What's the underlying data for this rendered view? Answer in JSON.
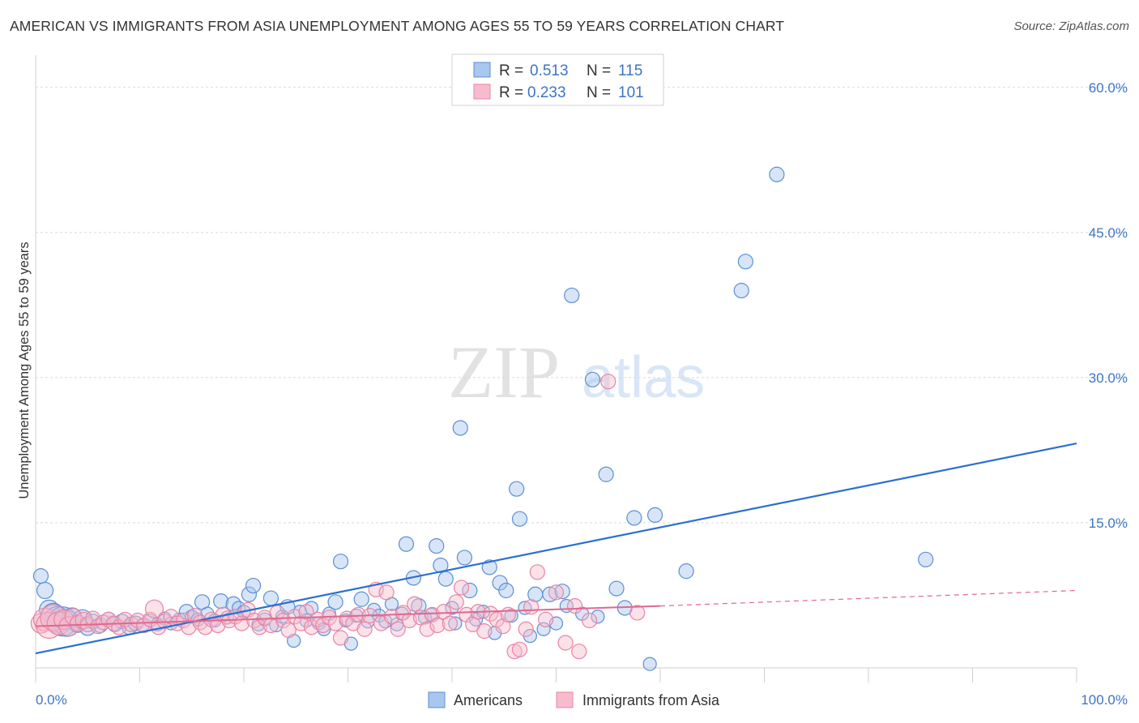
{
  "title": "AMERICAN VS IMMIGRANTS FROM ASIA UNEMPLOYMENT AMONG AGES 55 TO 59 YEARS CORRELATION CHART",
  "source": "Source: ZipAtlas.com",
  "watermark": {
    "zip": "ZIP",
    "atlas": "atlas"
  },
  "colors": {
    "americans": "#5b8fd6",
    "americans_fill": "#a9c6ee",
    "americans_line": "#2b6fd0",
    "asia": "#e884a4",
    "asia_fill": "#f6bccd",
    "asia_line": "#e2678f",
    "tick": "#3d74c4",
    "grid": "#d8d8d8"
  },
  "legend": {
    "rows": [
      {
        "r_label": "R =",
        "r_value": "0.513",
        "n_label": "N =",
        "n_value": "115"
      },
      {
        "r_label": "R =",
        "r_value": "0.233",
        "n_label": "N =",
        "n_value": "101"
      }
    ]
  },
  "bottom_legend": [
    "Americans",
    "Immigrants from Asia"
  ],
  "chart_data": {
    "type": "scatter",
    "title": "AMERICAN VS IMMIGRANTS FROM ASIA UNEMPLOYMENT AMONG AGES 55 TO 59 YEARS CORRELATION CHART",
    "xlabel": "",
    "ylabel": "Unemployment Among Ages 55 to 59 years",
    "xlim": [
      0,
      100
    ],
    "ylim": [
      0,
      63
    ],
    "x_ticks": [
      "0.0%",
      "100.0%"
    ],
    "y_ticks": [
      {
        "value": 15,
        "label": "15.0%"
      },
      {
        "value": 30,
        "label": "30.0%"
      },
      {
        "value": 45,
        "label": "45.0%"
      },
      {
        "value": 60,
        "label": "60.0%"
      }
    ],
    "grid": true,
    "legend_position": "top-center",
    "series": [
      {
        "name": "Americans",
        "r": 0.513,
        "n": 115,
        "trend": {
          "x": [
            0,
            100
          ],
          "y": [
            1.5,
            23.2
          ],
          "dashed_from": null
        },
        "points": [
          [
            0.5,
            9.5,
            9
          ],
          [
            0.9,
            8,
            10
          ],
          [
            1.3,
            6,
            12
          ],
          [
            1.7,
            5.5,
            14
          ],
          [
            2.1,
            5,
            16
          ],
          [
            2.6,
            4.8,
            18
          ],
          [
            3.0,
            4.6,
            16
          ],
          [
            3.5,
            5.2,
            12
          ],
          [
            4.0,
            4.5,
            10
          ],
          [
            4.5,
            5,
            12
          ],
          [
            5.0,
            4.2,
            10
          ],
          [
            5.5,
            4.8,
            9
          ],
          [
            6.2,
            4.4,
            9
          ],
          [
            7.0,
            5,
            9
          ],
          [
            7.6,
            4.5,
            9
          ],
          [
            8.3,
            4.8,
            9
          ],
          [
            9.0,
            4.2,
            9
          ],
          [
            9.6,
            4.6,
            9
          ],
          [
            10.3,
            4.4,
            8
          ],
          [
            11.0,
            4.9,
            8
          ],
          [
            11.7,
            4.5,
            8
          ],
          [
            12.4,
            5.1,
            8
          ],
          [
            13.0,
            4.6,
            8
          ],
          [
            13.8,
            5,
            8
          ],
          [
            14.5,
            5.8,
            9
          ],
          [
            15.0,
            5.3,
            8
          ],
          [
            15.6,
            5.0,
            8
          ],
          [
            16.0,
            6.8,
            9
          ],
          [
            16.5,
            5.6,
            8
          ],
          [
            17.2,
            4.9,
            8
          ],
          [
            17.8,
            6.9,
            9
          ],
          [
            18.4,
            5.2,
            8
          ],
          [
            19.0,
            6.6,
            9
          ],
          [
            19.5,
            6.2,
            8
          ],
          [
            20.0,
            5.8,
            8
          ],
          [
            20.5,
            7.6,
            9
          ],
          [
            20.9,
            8.5,
            9
          ],
          [
            21.4,
            4.5,
            8
          ],
          [
            22.0,
            5.0,
            8
          ],
          [
            22.6,
            7.2,
            9
          ],
          [
            23.1,
            4.4,
            8
          ],
          [
            23.7,
            5.3,
            8
          ],
          [
            24.2,
            6.3,
            9
          ],
          [
            24.8,
            2.8,
            8
          ],
          [
            25.4,
            5.8,
            8
          ],
          [
            26.0,
            4.9,
            8
          ],
          [
            26.5,
            6.2,
            8
          ],
          [
            27.2,
            4.6,
            8
          ],
          [
            27.7,
            4.0,
            8
          ],
          [
            28.2,
            5.6,
            8
          ],
          [
            28.8,
            6.8,
            9
          ],
          [
            29.3,
            11.0,
            9
          ],
          [
            29.8,
            4.9,
            8
          ],
          [
            30.3,
            2.5,
            8
          ],
          [
            30.8,
            5.4,
            8
          ],
          [
            31.3,
            7.1,
            9
          ],
          [
            31.9,
            4.8,
            8
          ],
          [
            32.5,
            6.0,
            8
          ],
          [
            33.0,
            5.4,
            8
          ],
          [
            33.6,
            4.8,
            8
          ],
          [
            34.2,
            6.6,
            8
          ],
          [
            34.7,
            4.5,
            8
          ],
          [
            35.2,
            5.6,
            8
          ],
          [
            35.6,
            12.8,
            9
          ],
          [
            36.3,
            9.3,
            9
          ],
          [
            36.8,
            6.4,
            9
          ],
          [
            37.4,
            5.2,
            8
          ],
          [
            38.0,
            5.5,
            8
          ],
          [
            38.5,
            12.6,
            9
          ],
          [
            38.9,
            10.6,
            9
          ],
          [
            39.4,
            9.2,
            9
          ],
          [
            40.0,
            6.2,
            8
          ],
          [
            40.3,
            4.6,
            8
          ],
          [
            40.8,
            24.8,
            9
          ],
          [
            41.2,
            11.4,
            9
          ],
          [
            41.7,
            8.0,
            9
          ],
          [
            42.3,
            5.0,
            8
          ],
          [
            43.0,
            5.8,
            8
          ],
          [
            43.6,
            10.4,
            9
          ],
          [
            44.1,
            3.6,
            8
          ],
          [
            44.6,
            8.8,
            9
          ],
          [
            45.2,
            8.0,
            9
          ],
          [
            45.7,
            5.4,
            8
          ],
          [
            46.2,
            18.5,
            9
          ],
          [
            46.5,
            15.4,
            9
          ],
          [
            47.0,
            6.2,
            8
          ],
          [
            47.5,
            3.3,
            8
          ],
          [
            48.0,
            7.6,
            9
          ],
          [
            48.8,
            4.0,
            8
          ],
          [
            49.4,
            7.6,
            9
          ],
          [
            50.0,
            4.6,
            8
          ],
          [
            50.6,
            7.9,
            9
          ],
          [
            51.0,
            6.4,
            8
          ],
          [
            51.5,
            38.5,
            9
          ],
          [
            52.5,
            5.6,
            8
          ],
          [
            53.5,
            29.8,
            9
          ],
          [
            54.0,
            5.3,
            8
          ],
          [
            54.8,
            20.0,
            9
          ],
          [
            55.8,
            8.2,
            9
          ],
          [
            56.6,
            6.2,
            9
          ],
          [
            57.5,
            15.5,
            9
          ],
          [
            59.0,
            0.4,
            8
          ],
          [
            59.5,
            15.8,
            9
          ],
          [
            62.5,
            10.0,
            9
          ],
          [
            67.8,
            39.0,
            9
          ],
          [
            68.2,
            42.0,
            9
          ],
          [
            71.2,
            51.0,
            9
          ],
          [
            85.5,
            11.2,
            9
          ]
        ]
      },
      {
        "name": "Immigrants from Asia",
        "r": 0.233,
        "n": 101,
        "trend": {
          "x": [
            0,
            60,
            100
          ],
          "y": [
            4.3,
            6.4,
            8.0
          ],
          "dashed_from": 60
        },
        "points": [
          [
            0.5,
            4.6,
            12
          ],
          [
            0.9,
            5.0,
            14
          ],
          [
            1.3,
            4.4,
            16
          ],
          [
            1.7,
            5.2,
            16
          ],
          [
            2.2,
            4.6,
            14
          ],
          [
            2.7,
            5.0,
            12
          ],
          [
            3.2,
            4.3,
            12
          ],
          [
            3.6,
            5.3,
            10
          ],
          [
            4.1,
            4.6,
            10
          ],
          [
            4.6,
            4.9,
            10
          ],
          [
            5.0,
            4.5,
            9
          ],
          [
            5.5,
            5.1,
            9
          ],
          [
            6.0,
            4.3,
            9
          ],
          [
            6.5,
            4.7,
            9
          ],
          [
            7.0,
            5.0,
            9
          ],
          [
            7.5,
            4.6,
            9
          ],
          [
            8.0,
            4.2,
            9
          ],
          [
            8.6,
            5.0,
            9
          ],
          [
            9.2,
            4.5,
            9
          ],
          [
            9.8,
            4.9,
            9
          ],
          [
            10.4,
            4.4,
            9
          ],
          [
            11.0,
            5.0,
            9
          ],
          [
            11.4,
            6.1,
            11
          ],
          [
            11.8,
            4.2,
            9
          ],
          [
            12.4,
            4.8,
            9
          ],
          [
            13.0,
            5.3,
            9
          ],
          [
            13.6,
            4.6,
            9
          ],
          [
            14.2,
            4.9,
            9
          ],
          [
            14.7,
            4.2,
            9
          ],
          [
            15.3,
            5.4,
            9
          ],
          [
            15.8,
            4.7,
            9
          ],
          [
            16.3,
            4.2,
            9
          ],
          [
            16.9,
            5.0,
            9
          ],
          [
            17.5,
            4.4,
            9
          ],
          [
            18.0,
            5.5,
            9
          ],
          [
            18.6,
            4.9,
            9
          ],
          [
            19.2,
            5.3,
            9
          ],
          [
            19.8,
            4.6,
            9
          ],
          [
            20.4,
            6.0,
            9
          ],
          [
            21.0,
            4.9,
            9
          ],
          [
            21.5,
            4.2,
            9
          ],
          [
            22.0,
            5.2,
            9
          ],
          [
            22.6,
            4.4,
            9
          ],
          [
            23.2,
            5.7,
            9
          ],
          [
            23.8,
            4.9,
            9
          ],
          [
            24.3,
            3.9,
            9
          ],
          [
            24.9,
            5.3,
            9
          ],
          [
            25.5,
            4.6,
            9
          ],
          [
            26.0,
            5.8,
            9
          ],
          [
            26.5,
            4.2,
            9
          ],
          [
            27.1,
            5.0,
            9
          ],
          [
            27.6,
            4.4,
            9
          ],
          [
            28.2,
            5.2,
            9
          ],
          [
            28.8,
            4.6,
            9
          ],
          [
            29.3,
            3.1,
            9
          ],
          [
            29.9,
            5.1,
            9
          ],
          [
            30.5,
            4.6,
            9
          ],
          [
            31.0,
            5.5,
            9
          ],
          [
            31.6,
            4.0,
            9
          ],
          [
            32.1,
            5.4,
            9
          ],
          [
            32.7,
            8.1,
            9
          ],
          [
            33.2,
            4.6,
            9
          ],
          [
            33.7,
            7.8,
            9
          ],
          [
            34.2,
            5.3,
            9
          ],
          [
            34.8,
            4.0,
            9
          ],
          [
            35.3,
            5.7,
            9
          ],
          [
            35.9,
            4.9,
            9
          ],
          [
            36.4,
            6.6,
            9
          ],
          [
            37.0,
            5.2,
            9
          ],
          [
            37.6,
            4.0,
            9
          ],
          [
            38.1,
            5.5,
            9
          ],
          [
            38.6,
            4.4,
            9
          ],
          [
            39.2,
            5.8,
            9
          ],
          [
            39.8,
            4.6,
            9
          ],
          [
            40.4,
            6.8,
            9
          ],
          [
            40.9,
            8.3,
            9
          ],
          [
            41.4,
            5.5,
            9
          ],
          [
            42.0,
            4.5,
            9
          ],
          [
            42.5,
            5.8,
            9
          ],
          [
            43.1,
            3.8,
            9
          ],
          [
            43.7,
            5.6,
            9
          ],
          [
            44.3,
            5.0,
            9
          ],
          [
            44.9,
            4.3,
            9
          ],
          [
            45.4,
            5.5,
            9
          ],
          [
            46.0,
            1.7,
            9
          ],
          [
            46.5,
            1.9,
            9
          ],
          [
            47.1,
            4.0,
            9
          ],
          [
            47.6,
            6.3,
            9
          ],
          [
            48.2,
            9.9,
            9
          ],
          [
            49.0,
            5.0,
            9
          ],
          [
            50.0,
            7.8,
            9
          ],
          [
            50.9,
            2.6,
            9
          ],
          [
            51.8,
            6.4,
            9
          ],
          [
            52.2,
            1.7,
            9
          ],
          [
            53.2,
            4.9,
            9
          ],
          [
            55.0,
            29.6,
            9
          ],
          [
            57.8,
            5.7,
            9
          ]
        ]
      }
    ]
  }
}
